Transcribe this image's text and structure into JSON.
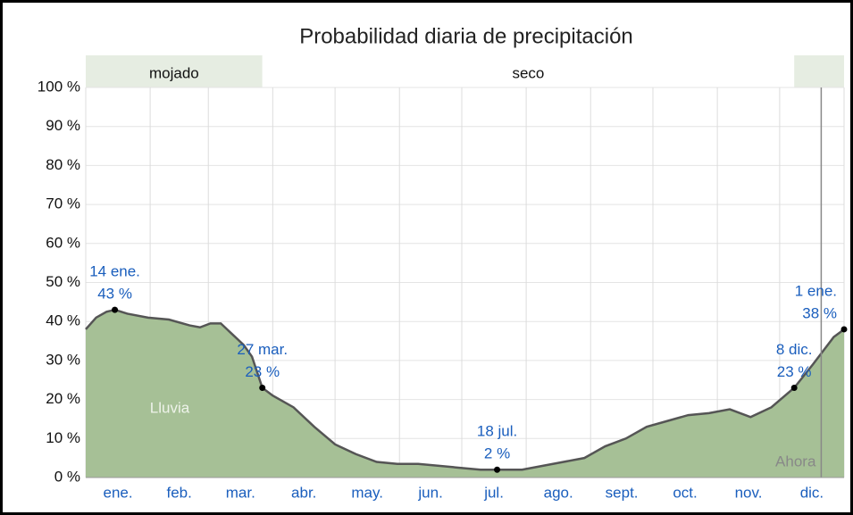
{
  "chart_data": {
    "type": "area",
    "title": "Probabilidad diaria de precipitación",
    "series_label": "Lluvia",
    "now_label": "Ahora",
    "now_x": 354,
    "color": "#a6c096",
    "line_color": "#555555",
    "bands": [
      {
        "label": "mojado",
        "start": 0,
        "end": 85,
        "color": "#e6ede2"
      },
      {
        "label": "seco",
        "start": 85,
        "end": 341,
        "color": "#ffffff"
      },
      {
        "start": 341,
        "end": 365,
        "color": "#e6ede2"
      }
    ],
    "categories": [
      "ene.",
      "feb.",
      "mar.",
      "abr.",
      "may.",
      "jun.",
      "jul.",
      "ago.",
      "sept.",
      "oct.",
      "nov.",
      "dic."
    ],
    "xlim": [
      0,
      365
    ],
    "xticks": [
      0,
      31,
      59,
      90,
      120,
      151,
      181,
      212,
      243,
      273,
      304,
      334,
      365
    ],
    "ylim": [
      0,
      100
    ],
    "yticks": [
      {
        "value": 0,
        "label": "0 %"
      },
      {
        "value": 10,
        "label": "10 %"
      },
      {
        "value": 20,
        "label": "20 %"
      },
      {
        "value": 30,
        "label": "30 %"
      },
      {
        "value": 40,
        "label": "40 %"
      },
      {
        "value": 50,
        "label": "50 %"
      },
      {
        "value": 60,
        "label": "60 %"
      },
      {
        "value": 70,
        "label": "70 %"
      },
      {
        "value": 80,
        "label": "80 %"
      },
      {
        "value": 90,
        "label": "90 %"
      },
      {
        "value": 100,
        "label": "100 %"
      }
    ],
    "x": [
      0,
      5,
      10,
      14,
      20,
      30,
      40,
      50,
      55,
      60,
      65,
      70,
      76,
      80,
      85,
      90,
      100,
      110,
      120,
      130,
      140,
      150,
      160,
      170,
      180,
      190,
      198,
      210,
      220,
      230,
      240,
      250,
      260,
      270,
      280,
      290,
      300,
      310,
      320,
      330,
      341,
      350,
      360,
      365
    ],
    "values": [
      38,
      41,
      42.5,
      43,
      42,
      41,
      40.5,
      39,
      38.5,
      39.5,
      39.5,
      37,
      34,
      31,
      23,
      21,
      18,
      13,
      8.5,
      6,
      4,
      3.5,
      3.5,
      3,
      2.5,
      2,
      2,
      2,
      3,
      4,
      5,
      8,
      10,
      13,
      14.5,
      16,
      16.5,
      17.5,
      15.5,
      18,
      23,
      29,
      36,
      38
    ],
    "annotations": [
      {
        "x": 14,
        "value": 43,
        "date": "14 ene.",
        "label": "43 %"
      },
      {
        "x": 85,
        "value": 23,
        "date": "27 mar.",
        "label": "23 %"
      },
      {
        "x": 198,
        "value": 2,
        "date": "18 jul.",
        "label": "2 %"
      },
      {
        "x": 341,
        "value": 23,
        "date": "8 dic.",
        "label": "23 %"
      },
      {
        "x": 365,
        "value": 38,
        "date": "1 ene.",
        "label": "38 %"
      }
    ]
  }
}
